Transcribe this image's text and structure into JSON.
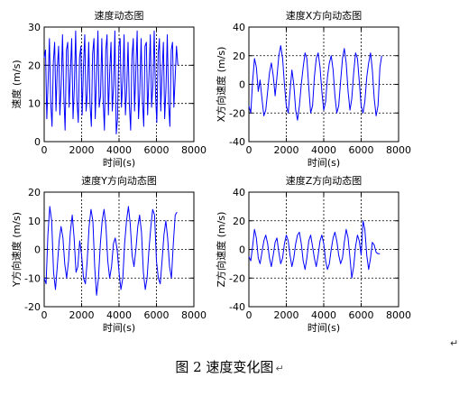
{
  "chart_data": [
    {
      "type": "line",
      "title": "速度动态图",
      "xlabel": "时间(s)",
      "ylabel": "速度 (m/s)",
      "xlim": [
        0,
        8000
      ],
      "ylim": [
        0,
        30
      ],
      "xticks": [
        0,
        2000,
        4000,
        6000,
        8000
      ],
      "yticks": [
        0,
        10,
        20,
        30
      ],
      "grid": true,
      "series": [
        {
          "color": "#0000ff",
          "x": [
            0,
            70,
            140,
            210,
            280,
            350,
            420,
            490,
            560,
            630,
            700,
            770,
            840,
            910,
            980,
            1050,
            1120,
            1190,
            1260,
            1330,
            1400,
            1470,
            1540,
            1610,
            1680,
            1750,
            1820,
            1890,
            1960,
            2030,
            2100,
            2170,
            2240,
            2310,
            2380,
            2450,
            2520,
            2590,
            2660,
            2730,
            2800,
            2870,
            2940,
            3010,
            3080,
            3150,
            3220,
            3290,
            3360,
            3430,
            3500,
            3570,
            3640,
            3710,
            3780,
            3850,
            3920,
            3990,
            4060,
            4130,
            4200,
            4270,
            4340,
            4410,
            4480,
            4550,
            4620,
            4690,
            4760,
            4830,
            4900,
            4970,
            5040,
            5110,
            5180,
            5250,
            5320,
            5390,
            5460,
            5530,
            5600,
            5670,
            5740,
            5810,
            5880,
            5950,
            6020,
            6090,
            6160,
            6230,
            6300,
            6370,
            6440,
            6510,
            6580,
            6650,
            6720,
            6790,
            6860,
            6930,
            7000,
            7070,
            7140
          ],
          "values": [
            22,
            24,
            6,
            16,
            27,
            10,
            4,
            21,
            26,
            8,
            19,
            25,
            7,
            15,
            28,
            12,
            3,
            24,
            26,
            9,
            18,
            27,
            6,
            14,
            29,
            11,
            5,
            22,
            25,
            7,
            20,
            28,
            8,
            13,
            26,
            10,
            4,
            23,
            27,
            6,
            17,
            29,
            9,
            12,
            27,
            11,
            3,
            24,
            28,
            7,
            18,
            26,
            8,
            15,
            29,
            2,
            6,
            25,
            27,
            9,
            16,
            28,
            7,
            14,
            26,
            10,
            3,
            22,
            27,
            8,
            19,
            29,
            6,
            13,
            27,
            11,
            4,
            25,
            26,
            7,
            17,
            28,
            9,
            15,
            29,
            12,
            5,
            23,
            27,
            8,
            18,
            26,
            6,
            14,
            28,
            10,
            4,
            24,
            26,
            9,
            17,
            25,
            20
          ]
        }
      ]
    },
    {
      "type": "line",
      "title": "速度X方向动态图",
      "xlabel": "时间(s)",
      "ylabel": "X方向速度 (m/s)",
      "xlim": [
        0,
        8000
      ],
      "ylim": [
        -40,
        40
      ],
      "xticks": [
        0,
        2000,
        4000,
        6000,
        8000
      ],
      "yticks": [
        -40,
        -20,
        0,
        20,
        40
      ],
      "grid": true,
      "series": [
        {
          "color": "#0000ff",
          "x": [
            0,
            100,
            200,
            300,
            400,
            500,
            600,
            700,
            800,
            900,
            1000,
            1100,
            1200,
            1300,
            1400,
            1500,
            1600,
            1700,
            1800,
            1900,
            2000,
            2100,
            2200,
            2300,
            2400,
            2500,
            2600,
            2700,
            2800,
            2900,
            3000,
            3100,
            3200,
            3300,
            3400,
            3500,
            3600,
            3700,
            3800,
            3900,
            4000,
            4100,
            4200,
            4300,
            4400,
            4500,
            4600,
            4700,
            4800,
            4900,
            5000,
            5100,
            5200,
            5300,
            5400,
            5500,
            5600,
            5700,
            5800,
            5900,
            6000,
            6100,
            6200,
            6300,
            6400,
            6500,
            6600,
            6700,
            6800,
            6900,
            7000,
            7100
          ],
          "values": [
            -15,
            -20,
            2,
            18,
            12,
            -5,
            3,
            -10,
            -22,
            -18,
            -5,
            8,
            15,
            6,
            -8,
            5,
            20,
            27,
            18,
            0,
            -15,
            -20,
            -5,
            10,
            0,
            -18,
            -25,
            -15,
            0,
            12,
            22,
            18,
            -2,
            -20,
            -15,
            5,
            18,
            22,
            12,
            -5,
            -18,
            -12,
            5,
            15,
            20,
            10,
            -8,
            -20,
            -15,
            2,
            18,
            25,
            15,
            -5,
            -18,
            -10,
            8,
            22,
            18,
            2,
            -15,
            -20,
            -12,
            5,
            15,
            22,
            10,
            -10,
            -22,
            -15,
            12,
            20
          ]
        }
      ]
    },
    {
      "type": "line",
      "title": "速度Y方向动态图",
      "xlabel": "时间(s)",
      "ylabel": "Y方向速度 (m/s)",
      "xlim": [
        0,
        8000
      ],
      "ylim": [
        -20,
        20
      ],
      "xticks": [
        0,
        2000,
        4000,
        6000,
        8000
      ],
      "yticks": [
        -20,
        -10,
        0,
        10,
        20
      ],
      "grid": true,
      "series": [
        {
          "color": "#0000ff",
          "x": [
            0,
            100,
            200,
            300,
            400,
            500,
            600,
            700,
            800,
            900,
            1000,
            1100,
            1200,
            1300,
            1400,
            1500,
            1600,
            1700,
            1800,
            1900,
            2000,
            2100,
            2200,
            2300,
            2400,
            2500,
            2600,
            2700,
            2800,
            2900,
            3000,
            3100,
            3200,
            3300,
            3400,
            3500,
            3600,
            3700,
            3800,
            3900,
            4000,
            4100,
            4200,
            4300,
            4400,
            4500,
            4600,
            4700,
            4800,
            4900,
            5000,
            5100,
            5200,
            5300,
            5400,
            5500,
            5600,
            5700,
            5800,
            5900,
            6000,
            6100,
            6200,
            6300,
            6400,
            6500,
            6600,
            6700,
            6800,
            6900,
            7000,
            7100
          ],
          "values": [
            -10,
            -12,
            5,
            15,
            10,
            -8,
            -14,
            -6,
            3,
            8,
            4,
            -5,
            -10,
            -4,
            6,
            12,
            4,
            -8,
            -6,
            3,
            -2,
            -10,
            -12,
            -4,
            8,
            14,
            10,
            -6,
            -16,
            -10,
            2,
            10,
            14,
            8,
            -4,
            -10,
            -6,
            2,
            4,
            0,
            -8,
            -14,
            -10,
            2,
            10,
            15,
            9,
            -2,
            -6,
            0,
            8,
            12,
            6,
            -8,
            -14,
            -10,
            0,
            8,
            14,
            12,
            -4,
            -10,
            -12,
            -4,
            5,
            10,
            4,
            -6,
            -10,
            2,
            12,
            13
          ]
        }
      ]
    },
    {
      "type": "line",
      "title": "速度Z方向动态图",
      "xlabel": "时间(s)",
      "ylabel": "Z方向速度 (m/s)",
      "xlim": [
        0,
        8000
      ],
      "ylim": [
        -40,
        40
      ],
      "xticks": [
        0,
        2000,
        4000,
        6000,
        8000
      ],
      "yticks": [
        -40,
        -20,
        0,
        20,
        40
      ],
      "grid": true,
      "series": [
        {
          "color": "#0000ff",
          "x": [
            0,
            100,
            200,
            300,
            400,
            500,
            600,
            700,
            800,
            900,
            1000,
            1100,
            1200,
            1300,
            1400,
            1500,
            1600,
            1700,
            1800,
            1900,
            2000,
            2100,
            2200,
            2300,
            2400,
            2500,
            2600,
            2700,
            2800,
            2900,
            3000,
            3100,
            3200,
            3300,
            3400,
            3500,
            3600,
            3700,
            3800,
            3900,
            4000,
            4100,
            4200,
            4300,
            4400,
            4500,
            4600,
            4700,
            4800,
            4900,
            5000,
            5100,
            5200,
            5300,
            5400,
            5500,
            5600,
            5700,
            5800,
            5900,
            6000,
            6100,
            6200,
            6300,
            6400,
            6500,
            6600,
            6700,
            6800,
            6900,
            7000
          ],
          "values": [
            -5,
            -8,
            2,
            14,
            8,
            -6,
            -10,
            -2,
            6,
            10,
            4,
            -6,
            -12,
            -4,
            5,
            8,
            -2,
            -10,
            -6,
            4,
            10,
            6,
            -4,
            -12,
            -6,
            4,
            10,
            12,
            4,
            -8,
            -14,
            -6,
            6,
            10,
            2,
            -6,
            -12,
            -4,
            6,
            10,
            4,
            -8,
            -14,
            -10,
            0,
            8,
            12,
            6,
            -4,
            -10,
            -6,
            5,
            14,
            8,
            -6,
            -20,
            -12,
            2,
            10,
            6,
            -4,
            20,
            14,
            -4,
            -14,
            -6,
            5,
            3,
            -2,
            -3,
            -3
          ]
        }
      ]
    }
  ],
  "caption": "图 2  速度变化图",
  "return_marks": [
    "↵",
    "↵"
  ]
}
